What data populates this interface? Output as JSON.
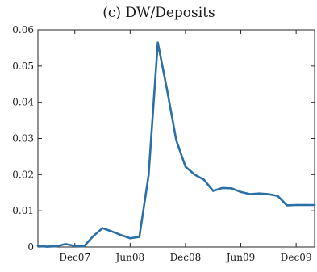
{
  "chart_data": {
    "type": "line",
    "title": "(c) DW/Deposits",
    "xlabel": "",
    "ylabel": "",
    "ylim": [
      0,
      0.06
    ],
    "yticks": [
      0,
      0.01,
      0.02,
      0.03,
      0.04,
      0.05,
      0.06
    ],
    "ytick_labels": [
      "0",
      "0.01",
      "0.02",
      "0.03",
      "0.04",
      "0.05",
      "0.06"
    ],
    "xlim": [
      "2007-08",
      "2010-02"
    ],
    "xticks": [
      "2007-12",
      "2008-06",
      "2008-12",
      "2009-06",
      "2009-12"
    ],
    "xtick_labels": [
      "Dec07",
      "Jun08",
      "Dec08",
      "Jun09",
      "Dec09"
    ],
    "grid": false,
    "series": [
      {
        "color": "#2a6fa5",
        "x": [
          "2007-08",
          "2007-09",
          "2007-10",
          "2007-11",
          "2007-12",
          "2008-01",
          "2008-02",
          "2008-03",
          "2008-04",
          "2008-05",
          "2008-06",
          "2008-07",
          "2008-08",
          "2008-09",
          "2008-10",
          "2008-11",
          "2008-12",
          "2009-01",
          "2009-02",
          "2009-03",
          "2009-04",
          "2009-05",
          "2009-06",
          "2009-07",
          "2009-08",
          "2009-09",
          "2009-10",
          "2009-11",
          "2009-12",
          "2010-01",
          "2010-02"
        ],
        "values": [
          0.0003,
          0.0001,
          0.0002,
          0.0008,
          0.0003,
          0.0002,
          0.003,
          0.0052,
          0.0043,
          0.0033,
          0.0024,
          0.0028,
          0.0198,
          0.0565,
          0.0435,
          0.0295,
          0.0222,
          0.02,
          0.0186,
          0.0155,
          0.0163,
          0.0162,
          0.0152,
          0.0146,
          0.0148,
          0.0146,
          0.0141,
          0.0115,
          0.0116,
          0.0116,
          0.0116
        ]
      }
    ]
  }
}
